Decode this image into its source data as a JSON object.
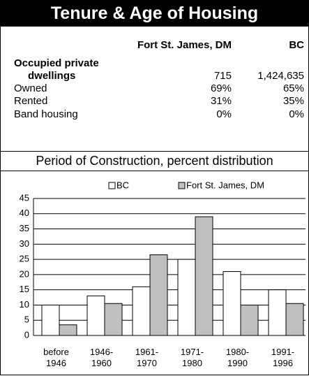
{
  "header": {
    "title": "Tenure & Age of Housing"
  },
  "table": {
    "columns": [
      "Fort St. James, DM",
      "BC"
    ],
    "rows": [
      {
        "label": "Occupied private dwellings",
        "values": [
          "715",
          "1,424,635"
        ]
      },
      {
        "label": "Owned",
        "values": [
          "69%",
          "65%"
        ]
      },
      {
        "label": "Rented",
        "values": [
          "31%",
          "35%"
        ]
      },
      {
        "label": "Band housing",
        "values": [
          "0%",
          "0%"
        ]
      }
    ]
  },
  "chart_data": {
    "type": "bar",
    "title": "Period of Construction, percent distribution",
    "categories": [
      "before 1946",
      "1946-1960",
      "1961-1970",
      "1971-1980",
      "1980-1990",
      "1991-1996"
    ],
    "series": [
      {
        "name": "BC",
        "color": "#ffffff",
        "values": [
          10,
          13,
          16,
          25,
          21,
          15
        ]
      },
      {
        "name": "Fort St. James, DM",
        "color": "#c0c0c0",
        "values": [
          3.5,
          10.5,
          26.5,
          39,
          10,
          10.5
        ]
      }
    ],
    "ylim": [
      0,
      45
    ],
    "yticks": [
      0,
      5,
      10,
      15,
      20,
      25,
      30,
      35,
      40,
      45
    ],
    "grid": true
  }
}
